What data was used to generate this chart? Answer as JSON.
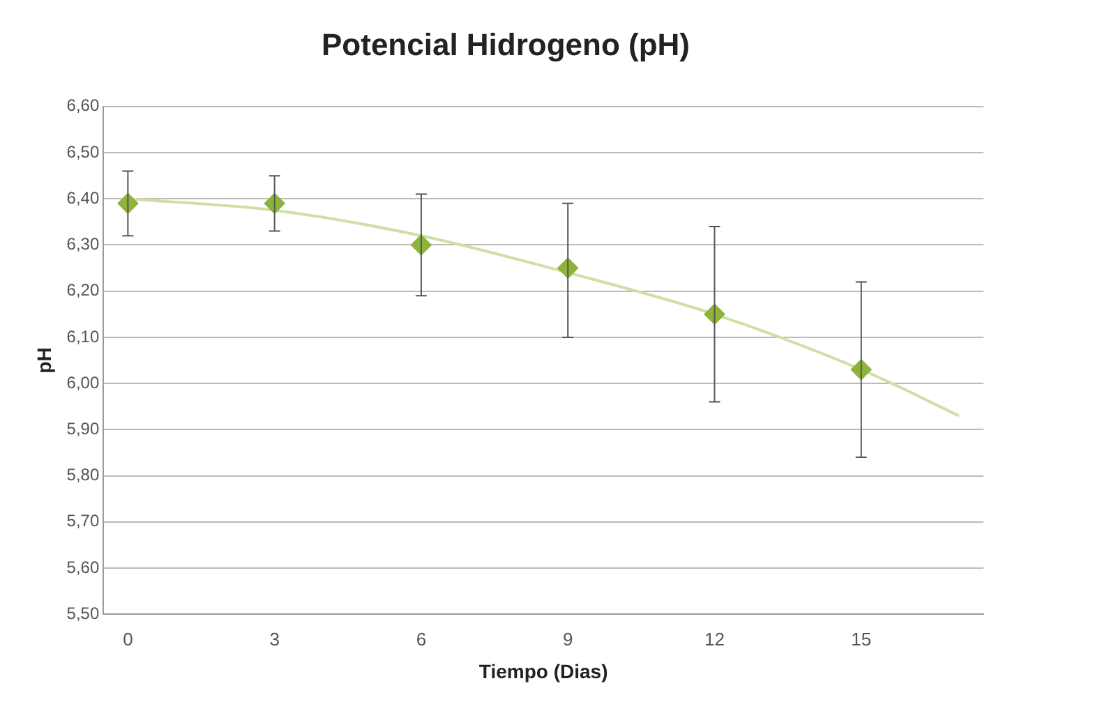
{
  "chart_data": {
    "type": "scatter",
    "title": "Potencial Hidrogeno (pH)",
    "xlabel": "Tiempo (Dias)",
    "ylabel": "pH",
    "xlim": [
      -0.5,
      17.5
    ],
    "xticks": [
      0,
      3,
      6,
      9,
      12,
      15
    ],
    "ylim": [
      5.5,
      6.6
    ],
    "yticks": [
      {
        "value": 5.5,
        "label": "5,50"
      },
      {
        "value": 5.6,
        "label": "5,60"
      },
      {
        "value": 5.7,
        "label": "5,70"
      },
      {
        "value": 5.8,
        "label": "5,80"
      },
      {
        "value": 5.9,
        "label": "5,90"
      },
      {
        "value": 6.0,
        "label": "6,00"
      },
      {
        "value": 6.1,
        "label": "6,10"
      },
      {
        "value": 6.2,
        "label": "6,20"
      },
      {
        "value": 6.3,
        "label": "6,30"
      },
      {
        "value": 6.4,
        "label": "6,40"
      },
      {
        "value": 6.5,
        "label": "6,50"
      },
      {
        "value": 6.6,
        "label": "6,60"
      }
    ],
    "grid": "y",
    "legend": false,
    "marker": "diamond",
    "series": [
      {
        "type": "scatter",
        "color": "#8db33a",
        "x": [
          0,
          3,
          6,
          9,
          12,
          15
        ],
        "values": [
          6.39,
          6.39,
          6.3,
          6.25,
          6.15,
          6.03
        ],
        "errors": [
          [
            6.32,
            6.46
          ],
          [
            6.33,
            6.45
          ],
          [
            6.19,
            6.41
          ],
          [
            6.1,
            6.39
          ],
          [
            5.96,
            6.34
          ],
          [
            5.84,
            6.22
          ]
        ]
      },
      {
        "type": "line",
        "color": "#cfe0a6",
        "marker": "none",
        "x": [
          0,
          3,
          6,
          9,
          12,
          15,
          17
        ],
        "values": [
          6.4,
          6.375,
          6.32,
          6.24,
          6.15,
          6.03,
          5.93
        ]
      }
    ]
  }
}
